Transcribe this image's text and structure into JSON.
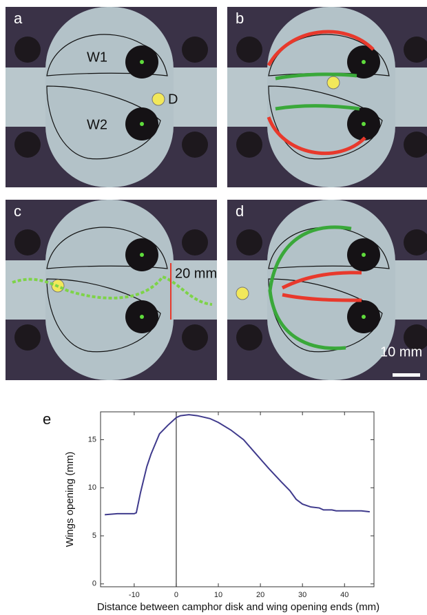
{
  "panels": [
    {
      "label": "a",
      "annotations": [
        "W1",
        "W2",
        "D"
      ]
    },
    {
      "label": "b"
    },
    {
      "label": "c",
      "annotations": [
        "20 mm"
      ]
    },
    {
      "label": "d",
      "annotations": [
        "10 mm"
      ]
    }
  ],
  "chart_data": {
    "type": "line",
    "panel_label": "e",
    "x_label": "Distance between camphor disk and wing opening ends (mm)",
    "y_label": "Wings opening (mm)",
    "x": [
      -17,
      -14,
      -10,
      -9.5,
      -8.5,
      -7,
      -6,
      -4,
      -2,
      0,
      1,
      3,
      5,
      8,
      10,
      13,
      16,
      19,
      22,
      25,
      27,
      28.5,
      30,
      32,
      34,
      35,
      37,
      38,
      40,
      42,
      44,
      46
    ],
    "series": [
      {
        "color": "#3f3a8c",
        "values": [
          7.2,
          7.3,
          7.3,
          7.4,
          9.5,
          12.2,
          13.5,
          15.6,
          16.5,
          17.3,
          17.5,
          17.6,
          17.5,
          17.2,
          16.8,
          16,
          15,
          13.5,
          12,
          10.6,
          9.7,
          8.8,
          8.3,
          8.0,
          7.9,
          7.7,
          7.7,
          7.6,
          7.6,
          7.6,
          7.6,
          7.5
        ]
      }
    ],
    "reference_x": 0,
    "xlim": [
      -18,
      47
    ],
    "ylim": [
      -0.3,
      17.9
    ],
    "xticks": [
      -10,
      0,
      10,
      20,
      30,
      40
    ],
    "yticks": [
      0,
      5,
      10,
      15
    ]
  }
}
